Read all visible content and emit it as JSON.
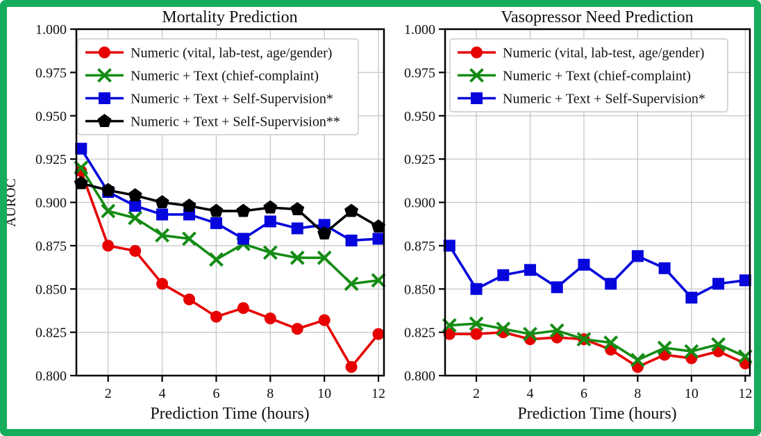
{
  "figure": {
    "border_color": "#15ad5b",
    "background": "#ffffff",
    "grid_color": "#c6c6c6",
    "spine_color": "#000000"
  },
  "chart_data": [
    {
      "type": "line",
      "title": "Mortality Prediction",
      "xlabel": "Prediction Time (hours)",
      "ylabel": "AUROC",
      "x": [
        1,
        2,
        3,
        4,
        5,
        6,
        7,
        8,
        9,
        10,
        11,
        12
      ],
      "xtick_labels": [
        "2",
        "4",
        "6",
        "8",
        "10",
        "12"
      ],
      "xticks": [
        2,
        4,
        6,
        8,
        10,
        12
      ],
      "ytick_labels": [
        "1.000",
        "0.975",
        "0.950",
        "0.925",
        "0.900",
        "0.875",
        "0.850",
        "0.825",
        "0.800"
      ],
      "yticks": [
        1.0,
        0.975,
        0.95,
        0.925,
        0.9,
        0.875,
        0.85,
        0.825,
        0.8
      ],
      "ylim": [
        0.8,
        1.0
      ],
      "grid": true,
      "legend_position": "upper left",
      "series": [
        {
          "name": "Numeric (vital, lab-test, age/gender)",
          "color": "#e60000",
          "marker": "circle",
          "values": [
            0.918,
            0.875,
            0.872,
            0.853,
            0.844,
            0.834,
            0.839,
            0.833,
            0.827,
            0.832,
            0.805,
            0.824
          ]
        },
        {
          "name": "Numeric + Text (chief-complaint)",
          "color": "#148c14",
          "marker": "x",
          "values": [
            0.92,
            0.895,
            0.891,
            0.881,
            0.879,
            0.867,
            0.876,
            0.871,
            0.868,
            0.868,
            0.853,
            0.855
          ]
        },
        {
          "name": "Numeric + Text + Self-Supervision*",
          "color": "#0505dc",
          "marker": "square",
          "values": [
            0.931,
            0.906,
            0.898,
            0.893,
            0.893,
            0.888,
            0.879,
            0.889,
            0.885,
            0.887,
            0.878,
            0.879
          ]
        },
        {
          "name": "Numeric + Text + Self-Supervision**",
          "color": "#000000",
          "marker": "pentagon",
          "values": [
            0.911,
            0.907,
            0.904,
            0.9,
            0.898,
            0.895,
            0.895,
            0.897,
            0.896,
            0.882,
            0.895,
            0.886
          ]
        }
      ]
    },
    {
      "type": "line",
      "title": "Vasopressor Need Prediction",
      "xlabel": "Prediction Time (hours)",
      "ylabel": "",
      "x": [
        1,
        2,
        3,
        4,
        5,
        6,
        7,
        8,
        9,
        10,
        11,
        12
      ],
      "xtick_labels": [
        "2",
        "4",
        "6",
        "8",
        "10",
        "12"
      ],
      "xticks": [
        2,
        4,
        6,
        8,
        10,
        12
      ],
      "ytick_labels": [
        "1.000",
        "0.975",
        "0.950",
        "0.925",
        "0.900",
        "0.875",
        "0.850",
        "0.825",
        "0.800"
      ],
      "yticks": [
        1.0,
        0.975,
        0.95,
        0.925,
        0.9,
        0.875,
        0.85,
        0.825,
        0.8
      ],
      "ylim": [
        0.8,
        1.0
      ],
      "grid": true,
      "legend_position": "upper left",
      "series": [
        {
          "name": "Numeric (vital, lab-test, age/gender)",
          "color": "#e60000",
          "marker": "circle",
          "values": [
            0.824,
            0.824,
            0.825,
            0.821,
            0.822,
            0.821,
            0.815,
            0.805,
            0.812,
            0.81,
            0.814,
            0.807
          ]
        },
        {
          "name": "Numeric + Text (chief-complaint)",
          "color": "#148c14",
          "marker": "x",
          "values": [
            0.829,
            0.83,
            0.827,
            0.824,
            0.826,
            0.821,
            0.819,
            0.809,
            0.816,
            0.814,
            0.818,
            0.811
          ]
        },
        {
          "name": "Numeric + Text + Self-Supervision*",
          "color": "#0505dc",
          "marker": "square",
          "values": [
            0.875,
            0.85,
            0.858,
            0.861,
            0.851,
            0.864,
            0.853,
            0.869,
            0.862,
            0.845,
            0.853,
            0.855
          ]
        }
      ]
    }
  ]
}
